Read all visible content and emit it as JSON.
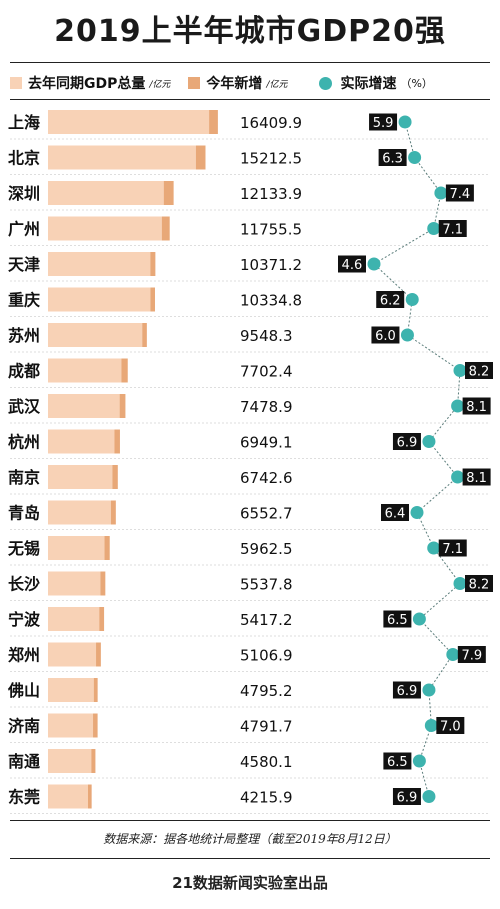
{
  "chart_data": {
    "type": "bar",
    "title": "2019上半年城市GDP20强",
    "legend": {
      "prev": "去年同期GDP总量",
      "prev_unit": "/亿元",
      "incr": "今年新增",
      "incr_unit": "/亿元",
      "growth": "实际增速",
      "growth_unit": "（%）"
    },
    "categories": [
      "上海",
      "北京",
      "深圳",
      "广州",
      "天津",
      "重庆",
      "苏州",
      "成都",
      "武汉",
      "杭州",
      "南京",
      "青岛",
      "无锡",
      "长沙",
      "宁波",
      "郑州",
      "佛山",
      "济南",
      "南通",
      "东莞"
    ],
    "series": [
      {
        "name": "去年同期GDP总量",
        "values": [
          15560,
          14280,
          11180,
          10990,
          9880,
          9890,
          9100,
          7090,
          6920,
          6420,
          6220,
          6070,
          5460,
          5060,
          4950,
          4640,
          4420,
          4350,
          4180,
          3860
        ]
      },
      {
        "name": "今年新增",
        "values": [
          849.9,
          932.5,
          953.9,
          765.5,
          491.2,
          444.8,
          448.3,
          612.4,
          558.9,
          529.1,
          522.6,
          482.7,
          502.5,
          477.8,
          467.2,
          466.9,
          375.2,
          441.7,
          400.1,
          355.9
        ]
      },
      {
        "name": "实际增速",
        "values": [
          5.9,
          6.3,
          7.4,
          7.1,
          4.6,
          6.2,
          6.0,
          8.2,
          8.1,
          6.9,
          8.1,
          6.4,
          7.1,
          8.2,
          6.5,
          7.9,
          6.9,
          7.0,
          6.5,
          6.9
        ]
      }
    ],
    "totals": [
      "16409.9",
      "15212.5",
      "12133.9",
      "11755.5",
      "10371.2",
      "10334.8",
      "9548.3",
      "7702.4",
      "7478.9",
      "6949.1",
      "6742.6",
      "6552.7",
      "5962.5",
      "5537.8",
      "5417.2",
      "5106.9",
      "4795.2",
      "4791.7",
      "4580.1",
      "4215.9"
    ],
    "growth_labels": [
      "5.9",
      "6.3",
      "7.4",
      "7.1",
      "4.6",
      "6.2",
      "6.0",
      "8.2",
      "8.1",
      "6.9",
      "8.1",
      "6.4",
      "7.1",
      "8.2",
      "6.5",
      "7.9",
      "6.9",
      "7.0",
      "6.5",
      "6.9"
    ],
    "growth_range": [
      4.6,
      8.2
    ],
    "grid": false
  },
  "colors": {
    "prev": "#f8d2b6",
    "incr": "#e8a878",
    "growth": "#3db3ae",
    "label_bg": "#111111",
    "label_text": "#ffffff"
  },
  "source": "数据来源：据各地统计局整理（截至2019年8月12日）",
  "credit": "21数据新闻实验室出品"
}
